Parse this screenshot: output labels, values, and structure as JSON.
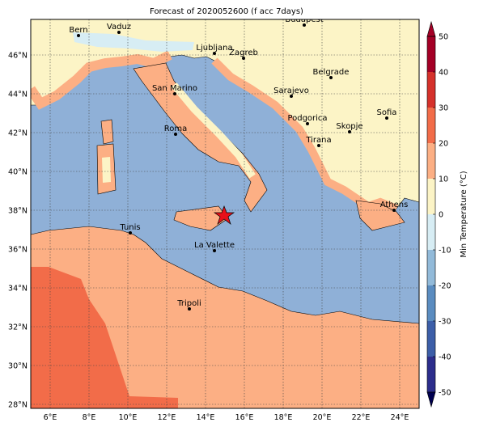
{
  "title": "Forecast of 2020052600 (f acc 7days)",
  "cities": [
    "Bern",
    "Vaduz",
    "Budapest",
    "Ljubljana",
    "Zagreb",
    "Belgrade",
    "Sarajevo",
    "San Marino",
    "Roma",
    "Podgorica",
    "Skopje",
    "Sofia",
    "Tirana",
    "Athens",
    "Tunis",
    "La Valette",
    "Tripoli"
  ],
  "longitude_ticks": [
    "6°E",
    "8°E",
    "10°E",
    "12°E",
    "14°E",
    "16°E",
    "18°E",
    "20°E",
    "22°E",
    "24°E"
  ],
  "latitude_ticks": [
    "28°N",
    "30°N",
    "32°N",
    "34°N",
    "36°N",
    "38°N",
    "40°N",
    "42°N",
    "44°N",
    "46°N"
  ],
  "colorbar": {
    "label": "Min Temperature (°C)",
    "ticks": [
      -50,
      -40,
      -30,
      -20,
      -10,
      0,
      10,
      20,
      30,
      40,
      50
    ],
    "colors": [
      "#2c2d8c",
      "#3c5ea8",
      "#5a8cc0",
      "#92bad9",
      "#d7edf4",
      "#fcf4c6",
      "#fcaf84",
      "#f26c49",
      "#d5312b",
      "#a40026"
    ]
  }
}
